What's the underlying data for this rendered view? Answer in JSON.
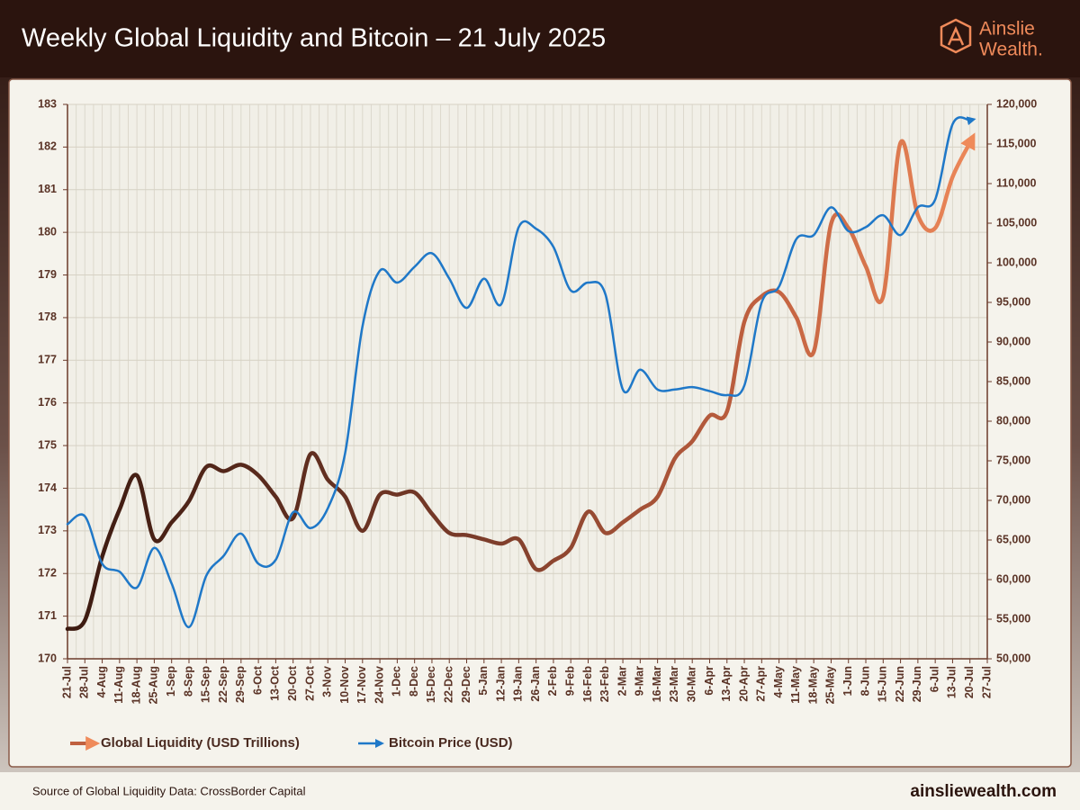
{
  "chart_data": {
    "type": "line",
    "title": "Weekly Global Liquidity and Bitcoin – 21 July 2025",
    "brand": [
      "Ainslie",
      "Wealth."
    ],
    "source": "Source of Global Liquidity Data: CrossBorder Capital",
    "website": "ainsliewealth.com",
    "categories": [
      "21-Jul",
      "28-Jul",
      "4-Aug",
      "11-Aug",
      "18-Aug",
      "25-Aug",
      "1-Sep",
      "8-Sep",
      "15-Sep",
      "22-Sep",
      "29-Sep",
      "6-Oct",
      "13-Oct",
      "20-Oct",
      "27-Oct",
      "3-Nov",
      "10-Nov",
      "17-Nov",
      "24-Nov",
      "1-Dec",
      "8-Dec",
      "15-Dec",
      "22-Dec",
      "29-Dec",
      "5-Jan",
      "12-Jan",
      "19-Jan",
      "26-Jan",
      "2-Feb",
      "9-Feb",
      "16-Feb",
      "23-Feb",
      "2-Mar",
      "9-Mar",
      "16-Mar",
      "23-Mar",
      "30-Mar",
      "6-Apr",
      "13-Apr",
      "20-Apr",
      "27-Apr",
      "4-May",
      "11-May",
      "18-May",
      "25-May",
      "1-Jun",
      "8-Jun",
      "15-Jun",
      "22-Jun",
      "29-Jun",
      "6-Jul",
      "13-Jul",
      "20-Jul",
      "27-Jul"
    ],
    "series": [
      {
        "name": "Global Liquidity (USD Trillions)",
        "color": "#ef8a5a",
        "axis": "y",
        "values": [
          170.7,
          170.9,
          172.4,
          173.5,
          174.3,
          172.8,
          173.2,
          173.7,
          174.5,
          174.4,
          174.55,
          174.3,
          173.8,
          173.3,
          174.8,
          174.2,
          173.8,
          173.0,
          173.85,
          173.85,
          173.9,
          173.4,
          172.95,
          172.9,
          172.8,
          172.7,
          172.8,
          172.1,
          172.3,
          172.6,
          173.45,
          172.95,
          173.2,
          173.5,
          173.8,
          174.7,
          175.1,
          175.7,
          175.8,
          177.9,
          178.5,
          178.6,
          178.0,
          177.2,
          180.2,
          180.1,
          179.2,
          178.5,
          182.1,
          180.4,
          180.1,
          181.3,
          182.1,
          null
        ]
      },
      {
        "name": "Bitcoin Price (USD)",
        "color": "#1f78c8",
        "axis": "y2",
        "values": [
          67000,
          68000,
          62000,
          61000,
          59000,
          64000,
          59500,
          54000,
          60500,
          63000,
          65800,
          62000,
          62500,
          68500,
          66500,
          69000,
          76000,
          92000,
          99000,
          97500,
          99500,
          101200,
          98000,
          94300,
          98000,
          94800,
          104500,
          104300,
          102000,
          96500,
          97500,
          96000,
          84000,
          86500,
          84000,
          84000,
          84300,
          83800,
          83300,
          84500,
          95000,
          97000,
          103000,
          103500,
          107000,
          104000,
          104500,
          106000,
          103500,
          107000,
          108000,
          117500,
          118000,
          null
        ]
      }
    ],
    "ylim": [
      170,
      183
    ],
    "yticks": [
      170,
      171,
      172,
      173,
      174,
      175,
      176,
      177,
      178,
      179,
      180,
      181,
      182,
      183
    ],
    "y2lim": [
      50000,
      120000
    ],
    "y2ticks": [
      {
        "value": 50000,
        "label": "50,000"
      },
      {
        "value": 55000,
        "label": "55,000"
      },
      {
        "value": 60000,
        "label": "60,000"
      },
      {
        "value": 65000,
        "label": "65,000"
      },
      {
        "value": 70000,
        "label": "70,000"
      },
      {
        "value": 75000,
        "label": "75,000"
      },
      {
        "value": 80000,
        "label": "80,000"
      },
      {
        "value": 85000,
        "label": "85,000"
      },
      {
        "value": 90000,
        "label": "90,000"
      },
      {
        "value": 95000,
        "label": "95,000"
      },
      {
        "value": 100000,
        "label": "100,000"
      },
      {
        "value": 105000,
        "label": "105,000"
      },
      {
        "value": 110000,
        "label": "110,000"
      },
      {
        "value": 115000,
        "label": "115,000"
      },
      {
        "value": 120000,
        "label": "120,000"
      }
    ],
    "grid": true,
    "legend": "bottom-left"
  }
}
